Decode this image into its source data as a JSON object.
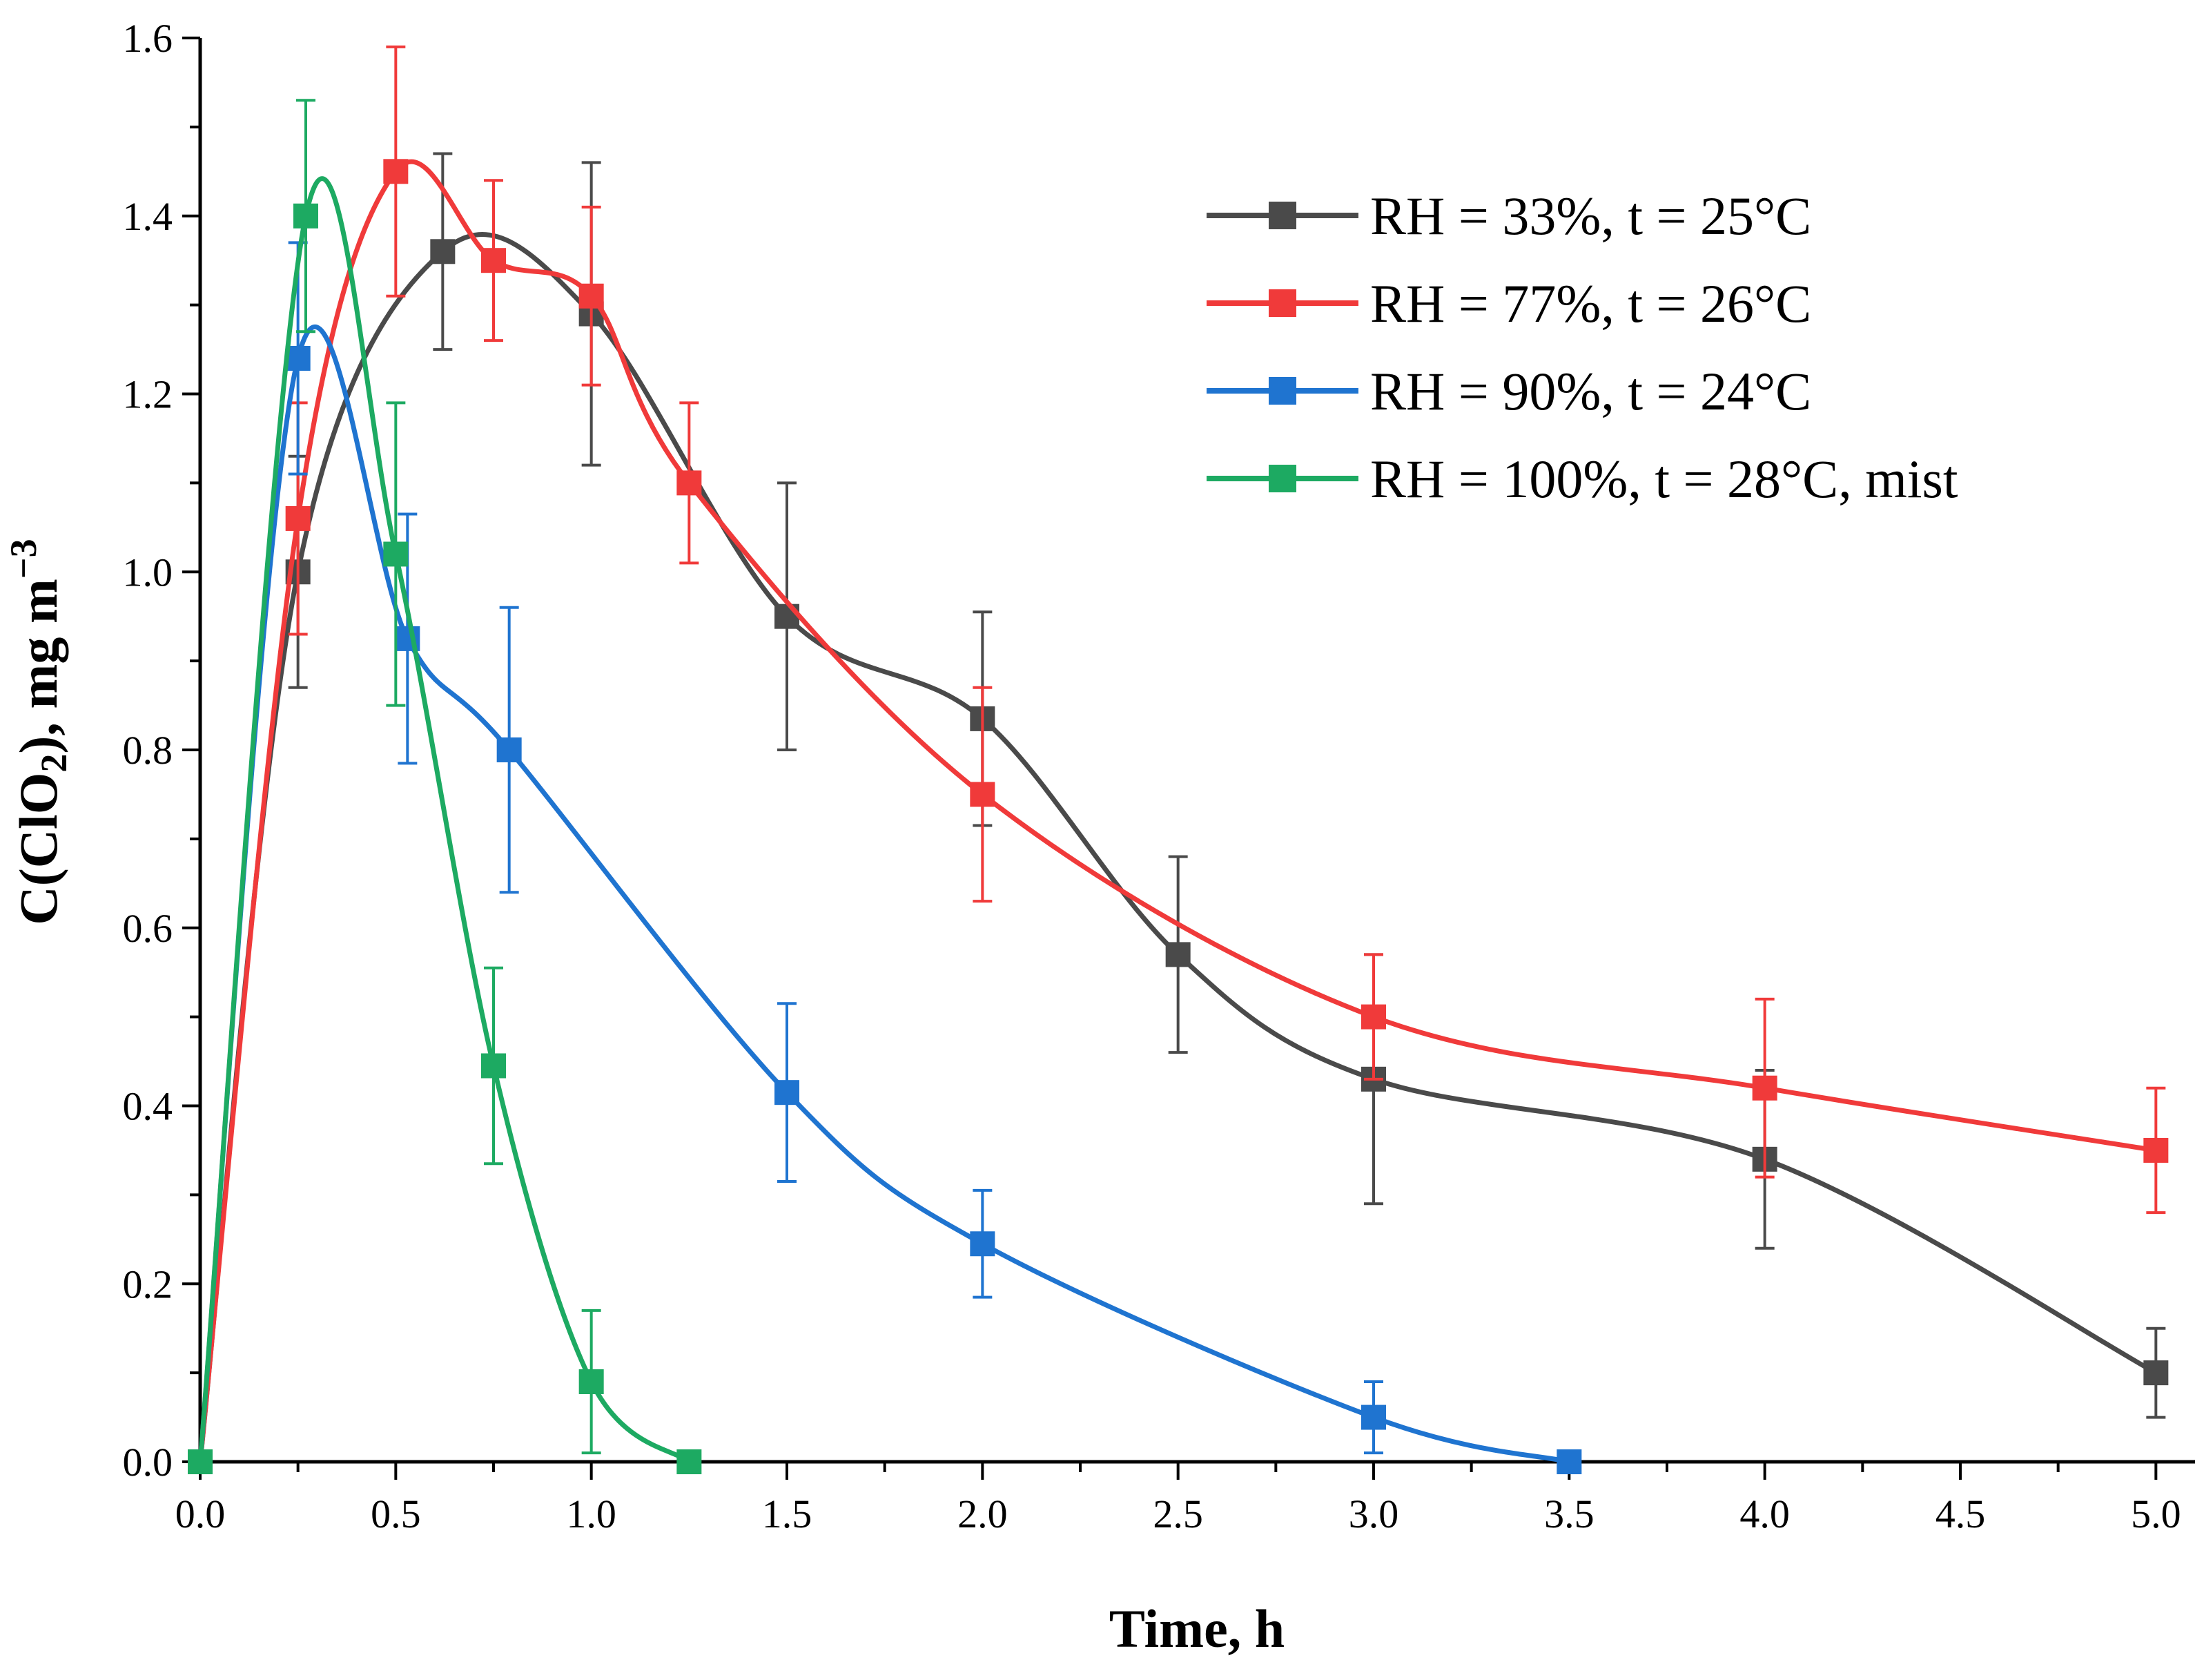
{
  "chart_data": {
    "type": "line",
    "title": "",
    "xlabel": "Time, h",
    "ylabel_main": "C(ClO",
    "ylabel_sub": "2",
    "ylabel_tail": "), mg m",
    "ylabel_sup": "−3",
    "xlim": [
      0,
      5.1
    ],
    "ylim": [
      0,
      1.6
    ],
    "x_ticks": [
      "0.0",
      "0.5",
      "1.0",
      "1.5",
      "2.0",
      "2.5",
      "3.0",
      "3.5",
      "4.0",
      "4.5",
      "5.0"
    ],
    "y_ticks": [
      "0.0",
      "0.2",
      "0.4",
      "0.6",
      "0.8",
      "1.0",
      "1.2",
      "1.4",
      "1.6"
    ],
    "legend_position": "top-right",
    "series": [
      {
        "name": "RH = 33%, t = 25°C",
        "color": "#4a4a4a",
        "x": [
          0,
          0.25,
          0.62,
          1.0,
          1.5,
          2.0,
          2.5,
          3.0,
          4.0,
          5.0
        ],
        "y": [
          0,
          1.0,
          1.36,
          1.29,
          0.95,
          0.835,
          0.57,
          0.43,
          0.34,
          0.1
        ],
        "err": [
          0,
          0.13,
          0.11,
          0.17,
          0.15,
          0.12,
          0.11,
          0.14,
          0.1,
          0.05
        ]
      },
      {
        "name": "RH = 77%, t = 26°C",
        "color": "#f03a3a",
        "x": [
          0,
          0.25,
          0.5,
          0.75,
          1.0,
          1.25,
          2.0,
          3.0,
          4.0,
          5.0
        ],
        "y": [
          0,
          1.06,
          1.45,
          1.35,
          1.31,
          1.1,
          0.75,
          0.5,
          0.42,
          0.35
        ],
        "err": [
          0,
          0.13,
          0.14,
          0.09,
          0.1,
          0.09,
          0.12,
          0.07,
          0.1,
          0.07
        ]
      },
      {
        "name": "RH = 90%, t = 24°C",
        "color": "#1f74d0",
        "x": [
          0,
          0.25,
          0.53,
          0.79,
          1.5,
          2.0,
          3.0,
          3.5
        ],
        "y": [
          0,
          1.24,
          0.925,
          0.8,
          0.415,
          0.245,
          0.05,
          0.0
        ],
        "err": [
          0,
          0.13,
          0.14,
          0.16,
          0.1,
          0.06,
          0.04,
          0
        ]
      },
      {
        "name": "RH = 100%, t = 28°C, mist",
        "color": "#1daa62",
        "x": [
          0,
          0.27,
          0.5,
          0.75,
          1.0,
          1.25
        ],
        "y": [
          0,
          1.4,
          1.02,
          0.445,
          0.09,
          0.0
        ],
        "err": [
          0,
          0.13,
          0.17,
          0.11,
          0.08,
          0
        ]
      }
    ]
  }
}
